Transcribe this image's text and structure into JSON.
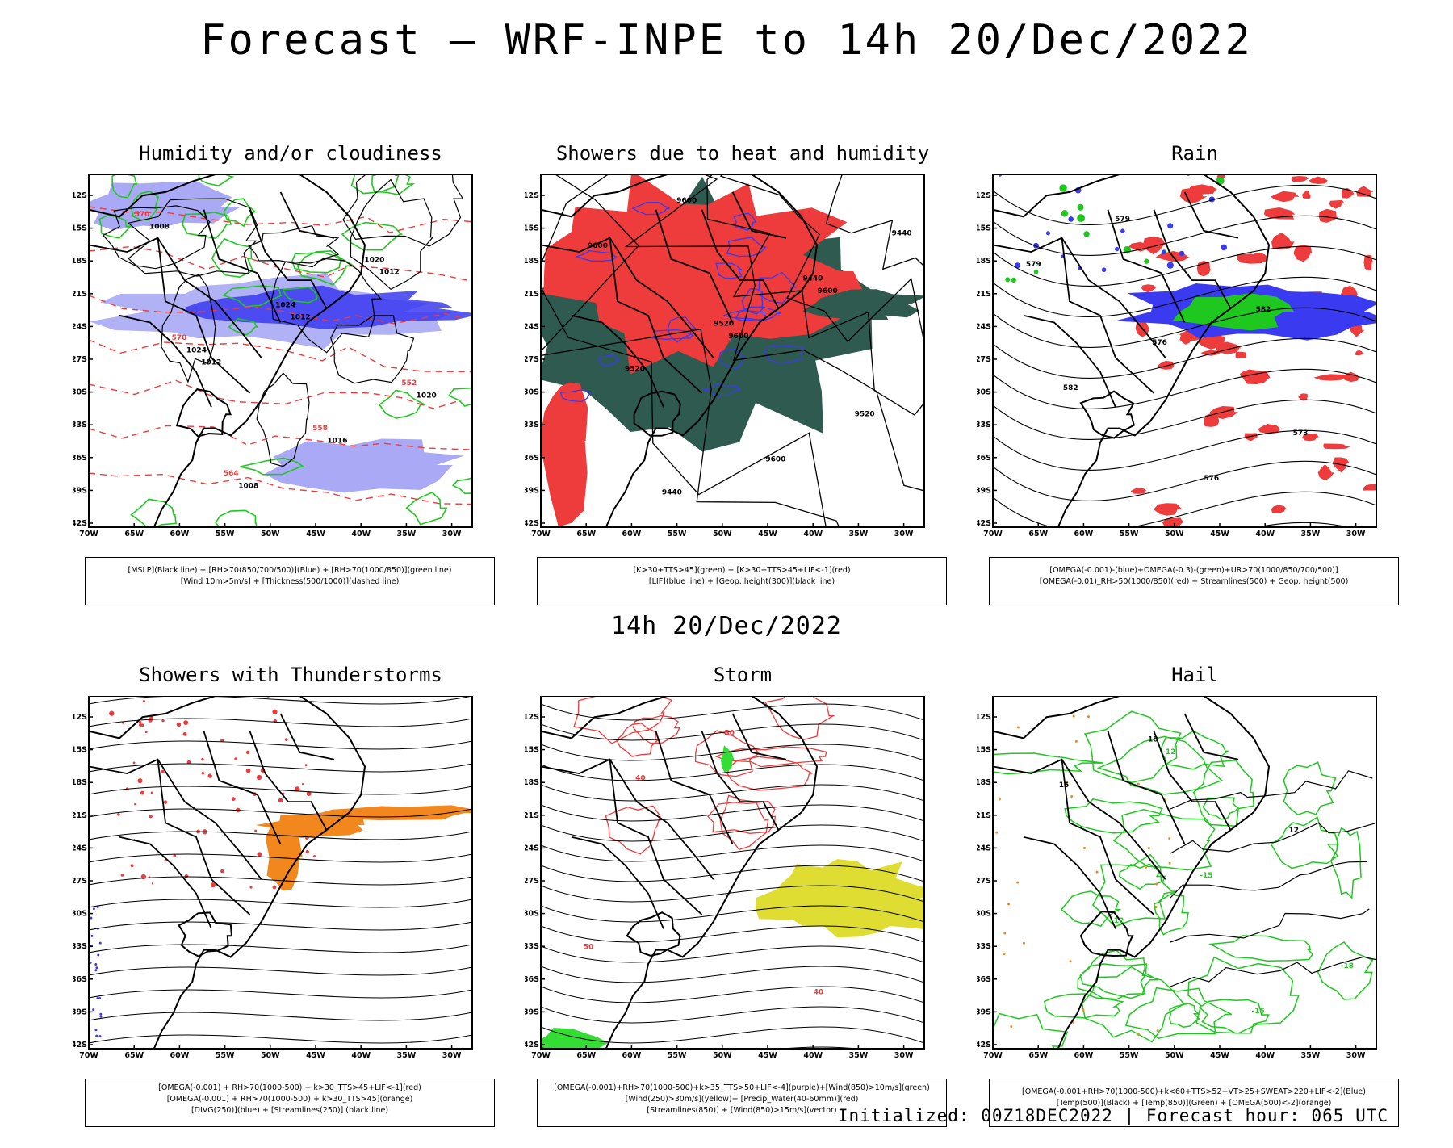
{
  "header": {
    "title": "Forecast – WRF-INPE to 14h 20/Dec/2022"
  },
  "middle": {
    "title": "14h 20/Dec/2022"
  },
  "footer": {
    "text": "Initialized: 00Z18DEC2022 | Forecast hour: 065 UTC"
  },
  "axes": {
    "lat_labels": [
      "12S",
      "15S",
      "18S",
      "21S",
      "24S",
      "27S",
      "30S",
      "33S",
      "36S",
      "39S",
      "42S"
    ],
    "lon_labels": [
      "70W",
      "65W",
      "60W",
      "55W",
      "50W",
      "45W",
      "40W",
      "35W",
      "30W"
    ]
  },
  "colors": {
    "green": "#1fc81f",
    "red": "#ee3b3b",
    "blue": "#3a3af0",
    "lightblue": "#a9a9f5",
    "darkgreen": "#2e5a50",
    "orange": "#f2871d",
    "yellow": "#dfdc32",
    "brightgreen": "#33dd33"
  },
  "panels": [
    {
      "title": "Humidity and/or cloudiness",
      "caption": [
        "[MSLP](Black line) + [RH>70(850/700/500)](Blue) + [RH>70(1000/850)](green line)",
        "[Wind 10m>5m/s] + [Thickness(500/1000)](dashed line)"
      ],
      "contour_labels": [
        "1012",
        "1012",
        "1012",
        "1008",
        "1008",
        "1016",
        "1020",
        "1024",
        "1024",
        "1020",
        "570",
        "564",
        "558",
        "552",
        "570"
      ]
    },
    {
      "title": "Showers due to heat and humidity",
      "caption": [
        "[K>30+TTS>45](green) + [K>30+TTS>45+LIF<-1](red)",
        "[LIF](blue line) + [Geop. height(300)](black line)"
      ],
      "contour_labels": [
        "9600",
        "9600",
        "9600",
        "9600",
        "9600",
        "9520",
        "9520",
        "9520",
        "9440",
        "9440",
        "9440"
      ]
    },
    {
      "title": "Rain",
      "caption": [
        "[OMEGA(-0.001)-(blue)+OMEGA(-0.3)-(green)+UR>70(1000/850/700/500)]",
        "[OMEGA(-0.01)_RH>50(1000/850)(red) + Streamlines(500) + Geop. height(500)"
      ],
      "contour_labels": [
        "582",
        "579",
        "579",
        "576",
        "573",
        "582",
        "576"
      ]
    },
    {
      "title": "Showers with Thunderstorms",
      "caption": [
        "[OMEGA(-0.001) + RH>70(1000-500) + k>30_TTS>45+LIF<-1](red)",
        "[OMEGA(-0.001) + RH>70(1000-500) + k>30_TTS>45](orange)",
        "[DIVG(250)](blue) + [Streamlines(250)] (black line)"
      ],
      "contour_labels": []
    },
    {
      "title": "Storm",
      "caption": [
        "[OMEGA(-0.001)+RH>70(1000-500)+k>35_TTS>50+LIF<-4](purple)+[Wind(850)>10m/s](green)",
        "[Wind(250)>30m/s](yellow)+ [Precip_Water(40-60mm)](red)",
        "[Streamlines(850)] + [Wind(850)>15m/s](vector)"
      ],
      "contour_labels": [
        "40",
        "50",
        "40",
        "50"
      ]
    },
    {
      "title": "Hail",
      "caption": [
        "[OMEGA(-0.001+RH>70(1000-500)+k<60+TTS>52+VT>25+SWEAT>220+LIF<-2](Blue)",
        "[Temp(500)](Black) + [Temp(850)](Green) + [OMEGA(500)<-2](orange)"
      ],
      "contour_labels": [
        "-12",
        "-15",
        "-18",
        "-12",
        "-15",
        "12",
        "15",
        "18"
      ]
    }
  ]
}
